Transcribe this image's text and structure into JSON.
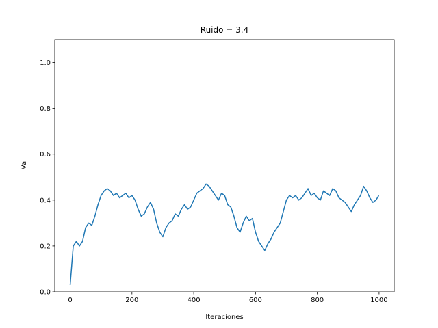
{
  "chart_data": {
    "type": "line",
    "title": "Ruido = 3.4",
    "xlabel": "Iteraciones",
    "ylabel": "Va",
    "color": "#1f77b4",
    "x": [
      0,
      10,
      20,
      30,
      40,
      50,
      60,
      70,
      80,
      90,
      100,
      110,
      120,
      130,
      140,
      150,
      160,
      170,
      180,
      190,
      200,
      210,
      220,
      230,
      240,
      250,
      260,
      270,
      280,
      290,
      300,
      310,
      320,
      330,
      340,
      350,
      360,
      370,
      380,
      390,
      400,
      410,
      420,
      430,
      440,
      450,
      460,
      470,
      480,
      490,
      500,
      510,
      520,
      530,
      540,
      550,
      560,
      570,
      580,
      590,
      600,
      610,
      620,
      630,
      640,
      650,
      660,
      670,
      680,
      690,
      700,
      710,
      720,
      730,
      740,
      750,
      760,
      770,
      780,
      790,
      800,
      810,
      820,
      830,
      840,
      850,
      860,
      870,
      880,
      890,
      900,
      910,
      920,
      930,
      940,
      950,
      960,
      970,
      980,
      990,
      999
    ],
    "values": [
      0.03,
      0.2,
      0.22,
      0.2,
      0.22,
      0.28,
      0.3,
      0.29,
      0.33,
      0.38,
      0.42,
      0.44,
      0.45,
      0.44,
      0.42,
      0.43,
      0.41,
      0.42,
      0.43,
      0.41,
      0.42,
      0.4,
      0.36,
      0.33,
      0.34,
      0.37,
      0.39,
      0.36,
      0.3,
      0.26,
      0.24,
      0.28,
      0.3,
      0.31,
      0.34,
      0.33,
      0.36,
      0.38,
      0.36,
      0.37,
      0.4,
      0.43,
      0.44,
      0.45,
      0.47,
      0.46,
      0.44,
      0.42,
      0.4,
      0.43,
      0.42,
      0.38,
      0.37,
      0.33,
      0.28,
      0.26,
      0.3,
      0.33,
      0.31,
      0.32,
      0.26,
      0.22,
      0.2,
      0.18,
      0.21,
      0.23,
      0.26,
      0.28,
      0.3,
      0.35,
      0.4,
      0.42,
      0.41,
      0.42,
      0.4,
      0.41,
      0.43,
      0.45,
      0.42,
      0.43,
      0.41,
      0.4,
      0.44,
      0.43,
      0.42,
      0.45,
      0.44,
      0.41,
      0.4,
      0.39,
      0.37,
      0.35,
      0.38,
      0.4,
      0.42,
      0.46,
      0.44,
      0.41,
      0.39,
      0.4,
      0.42
    ],
    "xlim": [
      -49.95,
      1048.95
    ],
    "xticks": [
      0,
      200,
      400,
      600,
      800,
      1000
    ],
    "ylim": [
      0,
      1.1
    ],
    "yticks": [
      {
        "value": 0,
        "label": "0.0"
      },
      0.2,
      0.4,
      0.6,
      0.8,
      {
        "value": 1,
        "label": "1.0"
      }
    ]
  }
}
